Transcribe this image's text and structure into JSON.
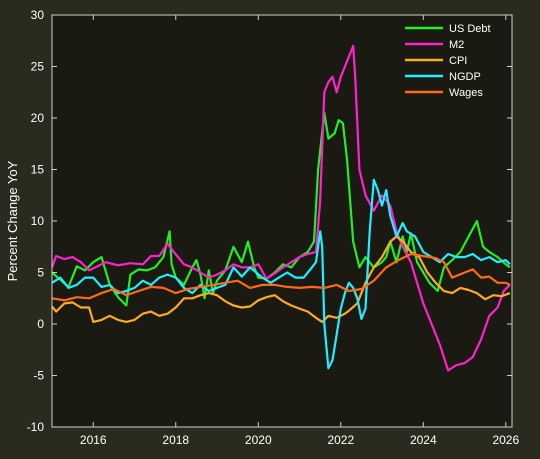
{
  "chart_data": {
    "type": "line",
    "title": "",
    "xlabel": "",
    "ylabel": "Percent Change YoY",
    "xlim": [
      2015.0,
      2026.15
    ],
    "ylim": [
      -10,
      30
    ],
    "x_ticks": [
      2016,
      2018,
      2020,
      2022,
      2024,
      2026
    ],
    "y_ticks": [
      -10,
      -5,
      0,
      5,
      10,
      15,
      20,
      25,
      30
    ],
    "grid": false,
    "legend_position": "top-right",
    "background_color": "#2b2a1f",
    "axes_color": "#1a1a12",
    "series": [
      {
        "name": "US Debt",
        "color": "#22ee22",
        "points": [
          [
            2015.0,
            5.0
          ],
          [
            2015.2,
            4.3
          ],
          [
            2015.4,
            3.6
          ],
          [
            2015.6,
            5.6
          ],
          [
            2015.8,
            5.2
          ],
          [
            2016.0,
            6.0
          ],
          [
            2016.2,
            6.5
          ],
          [
            2016.4,
            3.8
          ],
          [
            2016.6,
            2.6
          ],
          [
            2016.8,
            1.8
          ],
          [
            2016.9,
            4.8
          ],
          [
            2017.1,
            5.3
          ],
          [
            2017.3,
            5.2
          ],
          [
            2017.5,
            5.5
          ],
          [
            2017.7,
            6.5
          ],
          [
            2017.85,
            9.0
          ],
          [
            2017.9,
            5.8
          ],
          [
            2018.0,
            4.5
          ],
          [
            2018.2,
            3.8
          ],
          [
            2018.4,
            5.5
          ],
          [
            2018.5,
            6.2
          ],
          [
            2018.6,
            4.8
          ],
          [
            2018.7,
            2.5
          ],
          [
            2018.8,
            5.2
          ],
          [
            2018.9,
            3.0
          ],
          [
            2019.0,
            4.2
          ],
          [
            2019.2,
            5.2
          ],
          [
            2019.4,
            7.5
          ],
          [
            2019.6,
            6.0
          ],
          [
            2019.75,
            8.0
          ],
          [
            2019.9,
            5.5
          ],
          [
            2020.0,
            4.5
          ],
          [
            2020.2,
            4.4
          ],
          [
            2020.4,
            5.0
          ],
          [
            2020.6,
            5.8
          ],
          [
            2020.8,
            5.5
          ],
          [
            2021.0,
            6.5
          ],
          [
            2021.2,
            7.0
          ],
          [
            2021.35,
            8.0
          ],
          [
            2021.45,
            15.0
          ],
          [
            2021.6,
            20.5
          ],
          [
            2021.7,
            18.0
          ],
          [
            2021.85,
            18.5
          ],
          [
            2021.95,
            19.8
          ],
          [
            2022.05,
            19.5
          ],
          [
            2022.15,
            16.0
          ],
          [
            2022.3,
            8.0
          ],
          [
            2022.45,
            5.5
          ],
          [
            2022.6,
            6.5
          ],
          [
            2022.8,
            5.5
          ],
          [
            2023.0,
            6.0
          ],
          [
            2023.1,
            6.5
          ],
          [
            2023.2,
            8.0
          ],
          [
            2023.35,
            6.0
          ],
          [
            2023.5,
            8.5
          ],
          [
            2023.6,
            7.0
          ],
          [
            2023.7,
            8.8
          ],
          [
            2023.85,
            6.0
          ],
          [
            2024.0,
            5.0
          ],
          [
            2024.15,
            4.0
          ],
          [
            2024.35,
            3.2
          ],
          [
            2024.5,
            5.5
          ],
          [
            2024.7,
            6.2
          ],
          [
            2024.9,
            7.0
          ],
          [
            2025.1,
            8.5
          ],
          [
            2025.3,
            10.0
          ],
          [
            2025.45,
            7.5
          ],
          [
            2025.6,
            7.0
          ],
          [
            2025.8,
            6.5
          ],
          [
            2026.0,
            5.8
          ],
          [
            2026.1,
            5.5
          ]
        ]
      },
      {
        "name": "M2",
        "color": "#ff22cc",
        "points": [
          [
            2015.0,
            5.5
          ],
          [
            2015.1,
            6.6
          ],
          [
            2015.3,
            6.3
          ],
          [
            2015.5,
            6.5
          ],
          [
            2015.7,
            6.0
          ],
          [
            2015.9,
            5.2
          ],
          [
            2016.1,
            5.6
          ],
          [
            2016.3,
            6.0
          ],
          [
            2016.6,
            5.7
          ],
          [
            2016.9,
            5.9
          ],
          [
            2017.2,
            5.8
          ],
          [
            2017.4,
            6.6
          ],
          [
            2017.6,
            6.6
          ],
          [
            2017.8,
            7.8
          ],
          [
            2017.95,
            7.0
          ],
          [
            2018.2,
            5.8
          ],
          [
            2018.4,
            5.5
          ],
          [
            2018.6,
            5.0
          ],
          [
            2018.8,
            4.5
          ],
          [
            2019.0,
            4.8
          ],
          [
            2019.2,
            5.2
          ],
          [
            2019.4,
            5.8
          ],
          [
            2019.6,
            5.5
          ],
          [
            2019.8,
            5.5
          ],
          [
            2020.0,
            5.8
          ],
          [
            2020.2,
            4.4
          ],
          [
            2020.4,
            4.9
          ],
          [
            2020.6,
            5.5
          ],
          [
            2020.8,
            6.0
          ],
          [
            2021.0,
            6.5
          ],
          [
            2021.2,
            6.8
          ],
          [
            2021.4,
            7.0
          ],
          [
            2021.5,
            12.0
          ],
          [
            2021.6,
            22.5
          ],
          [
            2021.7,
            23.5
          ],
          [
            2021.8,
            24.0
          ],
          [
            2021.9,
            22.5
          ],
          [
            2022.0,
            24.0
          ],
          [
            2022.15,
            25.5
          ],
          [
            2022.3,
            27.0
          ],
          [
            2022.35,
            24.0
          ],
          [
            2022.45,
            15.0
          ],
          [
            2022.6,
            12.5
          ],
          [
            2022.8,
            11.0
          ],
          [
            2023.0,
            12.5
          ],
          [
            2023.2,
            11.5
          ],
          [
            2023.35,
            9.0
          ],
          [
            2023.5,
            7.5
          ],
          [
            2023.7,
            6.0
          ],
          [
            2023.85,
            4.0
          ],
          [
            2024.0,
            2.0
          ],
          [
            2024.2,
            0.0
          ],
          [
            2024.4,
            -2.0
          ],
          [
            2024.6,
            -4.5
          ],
          [
            2024.8,
            -4.0
          ],
          [
            2025.0,
            -3.8
          ],
          [
            2025.2,
            -3.2
          ],
          [
            2025.4,
            -1.5
          ],
          [
            2025.6,
            0.8
          ],
          [
            2025.8,
            1.6
          ],
          [
            2025.95,
            3.2
          ],
          [
            2026.1,
            3.8
          ]
        ]
      },
      {
        "name": "CPI",
        "color": "#ffaa22",
        "points": [
          [
            2015.0,
            1.7
          ],
          [
            2015.1,
            1.2
          ],
          [
            2015.3,
            2.0
          ],
          [
            2015.5,
            2.1
          ],
          [
            2015.7,
            1.6
          ],
          [
            2015.9,
            1.6
          ],
          [
            2016.0,
            0.2
          ],
          [
            2016.2,
            0.4
          ],
          [
            2016.4,
            0.8
          ],
          [
            2016.6,
            0.4
          ],
          [
            2016.8,
            0.2
          ],
          [
            2017.0,
            0.4
          ],
          [
            2017.2,
            1.0
          ],
          [
            2017.4,
            1.2
          ],
          [
            2017.6,
            0.8
          ],
          [
            2017.8,
            1.0
          ],
          [
            2018.0,
            1.6
          ],
          [
            2018.2,
            2.5
          ],
          [
            2018.4,
            2.5
          ],
          [
            2018.6,
            2.8
          ],
          [
            2018.8,
            3.0
          ],
          [
            2019.0,
            2.8
          ],
          [
            2019.2,
            2.2
          ],
          [
            2019.4,
            1.8
          ],
          [
            2019.6,
            1.6
          ],
          [
            2019.8,
            1.7
          ],
          [
            2020.0,
            2.3
          ],
          [
            2020.2,
            2.6
          ],
          [
            2020.4,
            2.8
          ],
          [
            2020.6,
            2.2
          ],
          [
            2020.8,
            1.8
          ],
          [
            2021.0,
            1.5
          ],
          [
            2021.2,
            1.2
          ],
          [
            2021.4,
            0.6
          ],
          [
            2021.55,
            0.2
          ],
          [
            2021.7,
            0.8
          ],
          [
            2021.9,
            0.6
          ],
          [
            2022.1,
            1.0
          ],
          [
            2022.2,
            1.3
          ],
          [
            2022.4,
            2.0
          ],
          [
            2022.6,
            4.0
          ],
          [
            2022.8,
            5.5
          ],
          [
            2023.0,
            6.5
          ],
          [
            2023.2,
            8.0
          ],
          [
            2023.35,
            8.5
          ],
          [
            2023.5,
            8.0
          ],
          [
            2023.7,
            7.0
          ],
          [
            2023.9,
            6.5
          ],
          [
            2024.1,
            5.0
          ],
          [
            2024.3,
            4.0
          ],
          [
            2024.5,
            3.2
          ],
          [
            2024.7,
            3.0
          ],
          [
            2024.9,
            3.5
          ],
          [
            2025.1,
            3.3
          ],
          [
            2025.3,
            3.0
          ],
          [
            2025.5,
            2.4
          ],
          [
            2025.7,
            2.8
          ],
          [
            2025.9,
            2.7
          ],
          [
            2026.1,
            3.0
          ]
        ]
      },
      {
        "name": "NGDP",
        "color": "#22eeff",
        "points": [
          [
            2015.0,
            4.0
          ],
          [
            2015.2,
            4.5
          ],
          [
            2015.4,
            3.5
          ],
          [
            2015.6,
            3.8
          ],
          [
            2015.8,
            4.5
          ],
          [
            2016.0,
            4.5
          ],
          [
            2016.2,
            3.6
          ],
          [
            2016.4,
            3.8
          ],
          [
            2016.6,
            3.0
          ],
          [
            2016.8,
            3.2
          ],
          [
            2017.0,
            3.5
          ],
          [
            2017.2,
            4.2
          ],
          [
            2017.4,
            3.8
          ],
          [
            2017.6,
            4.5
          ],
          [
            2017.8,
            4.8
          ],
          [
            2018.0,
            4.5
          ],
          [
            2018.2,
            3.5
          ],
          [
            2018.4,
            3.0
          ],
          [
            2018.6,
            3.8
          ],
          [
            2018.8,
            3.2
          ],
          [
            2019.0,
            3.5
          ],
          [
            2019.2,
            3.8
          ],
          [
            2019.4,
            5.5
          ],
          [
            2019.6,
            4.6
          ],
          [
            2019.8,
            5.5
          ],
          [
            2019.95,
            5.0
          ],
          [
            2020.1,
            4.5
          ],
          [
            2020.3,
            4.0
          ],
          [
            2020.5,
            4.5
          ],
          [
            2020.7,
            5.0
          ],
          [
            2020.9,
            4.5
          ],
          [
            2021.1,
            4.5
          ],
          [
            2021.3,
            5.5
          ],
          [
            2021.4,
            6.0
          ],
          [
            2021.5,
            9.0
          ],
          [
            2021.55,
            7.5
          ],
          [
            2021.6,
            0.0
          ],
          [
            2021.7,
            -4.3
          ],
          [
            2021.8,
            -3.5
          ],
          [
            2021.9,
            -1.0
          ],
          [
            2022.0,
            1.5
          ],
          [
            2022.1,
            3.0
          ],
          [
            2022.2,
            4.0
          ],
          [
            2022.3,
            3.5
          ],
          [
            2022.4,
            2.5
          ],
          [
            2022.5,
            0.5
          ],
          [
            2022.6,
            1.5
          ],
          [
            2022.7,
            9.0
          ],
          [
            2022.8,
            14.0
          ],
          [
            2022.9,
            13.0
          ],
          [
            2023.0,
            11.5
          ],
          [
            2023.1,
            13.0
          ],
          [
            2023.2,
            10.5
          ],
          [
            2023.35,
            8.5
          ],
          [
            2023.5,
            9.8
          ],
          [
            2023.6,
            9.0
          ],
          [
            2023.8,
            8.5
          ],
          [
            2024.0,
            7.0
          ],
          [
            2024.2,
            6.5
          ],
          [
            2024.4,
            6.0
          ],
          [
            2024.6,
            6.8
          ],
          [
            2024.8,
            6.5
          ],
          [
            2025.0,
            6.5
          ],
          [
            2025.2,
            6.8
          ],
          [
            2025.4,
            6.2
          ],
          [
            2025.6,
            6.5
          ],
          [
            2025.8,
            6.0
          ],
          [
            2026.0,
            6.2
          ],
          [
            2026.1,
            5.8
          ]
        ]
      },
      {
        "name": "Wages",
        "color": "#ff6a1a",
        "points": [
          [
            2015.0,
            2.5
          ],
          [
            2015.3,
            2.3
          ],
          [
            2015.6,
            2.6
          ],
          [
            2015.9,
            2.5
          ],
          [
            2016.2,
            3.0
          ],
          [
            2016.5,
            3.4
          ],
          [
            2016.8,
            2.8
          ],
          [
            2017.1,
            3.2
          ],
          [
            2017.4,
            3.6
          ],
          [
            2017.7,
            3.5
          ],
          [
            2018.0,
            3.0
          ],
          [
            2018.3,
            3.4
          ],
          [
            2018.6,
            3.6
          ],
          [
            2018.9,
            3.8
          ],
          [
            2019.2,
            4.0
          ],
          [
            2019.5,
            4.2
          ],
          [
            2019.8,
            3.5
          ],
          [
            2020.1,
            3.8
          ],
          [
            2020.4,
            3.8
          ],
          [
            2020.7,
            3.6
          ],
          [
            2021.0,
            3.5
          ],
          [
            2021.3,
            3.6
          ],
          [
            2021.6,
            3.5
          ],
          [
            2021.9,
            3.8
          ],
          [
            2022.2,
            3.2
          ],
          [
            2022.5,
            3.4
          ],
          [
            2022.8,
            4.2
          ],
          [
            2023.1,
            5.5
          ],
          [
            2023.4,
            6.2
          ],
          [
            2023.7,
            6.8
          ],
          [
            2024.0,
            6.6
          ],
          [
            2024.3,
            6.4
          ],
          [
            2024.5,
            6.0
          ],
          [
            2024.7,
            4.5
          ],
          [
            2025.0,
            5.0
          ],
          [
            2025.2,
            5.3
          ],
          [
            2025.4,
            4.5
          ],
          [
            2025.6,
            4.6
          ],
          [
            2025.8,
            4.0
          ],
          [
            2026.0,
            4.0
          ],
          [
            2026.1,
            3.8
          ]
        ]
      }
    ]
  }
}
